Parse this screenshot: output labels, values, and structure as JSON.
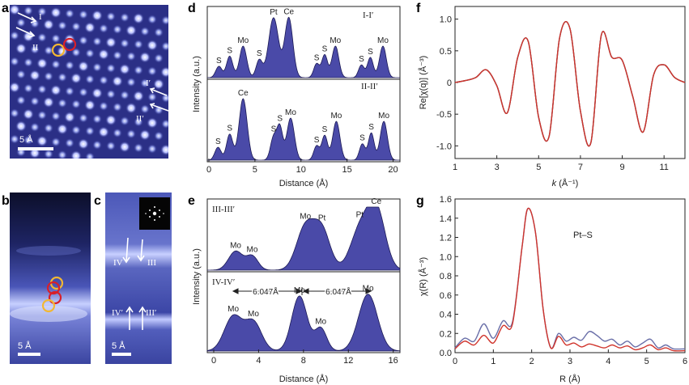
{
  "panels": {
    "a": {
      "label": "a",
      "scale_bar": "5 Å",
      "markers": [
        "I",
        "II",
        "I′",
        "II′"
      ]
    },
    "b": {
      "label": "b",
      "scale_bar": "5 Å"
    },
    "c": {
      "label": "c",
      "scale_bar": "5 Å",
      "markers": [
        "IV",
        "III",
        "IV′",
        "III′"
      ]
    },
    "d": {
      "label": "d",
      "ylabel": "Intensity (a.u.)",
      "xlabel": "Distance (Å)",
      "top_tag": "I-I′",
      "bottom_tag": "II-II′",
      "xticks": [
        "0",
        "5",
        "10",
        "15",
        "20"
      ]
    },
    "e": {
      "label": "e",
      "ylabel": "Intensity (a.u.)",
      "xlabel": "Distance (Å)",
      "top_tag": "III-III′",
      "bottom_tag": "IV-IV′",
      "spacing_1": "6.047Å",
      "spacing_2": "6.047Å",
      "xticks": [
        "0",
        "4",
        "8",
        "12",
        "16"
      ]
    },
    "f": {
      "label": "f",
      "ylabel": "Re[χ(q)] (Å⁻³)",
      "xlabel_k": "k",
      "xlabel_unit": "(Å⁻¹)",
      "xticks": [
        "1",
        "3",
        "5",
        "7",
        "9",
        "11"
      ],
      "yticks": [
        "1.0",
        "0.5",
        "0",
        "-0.5",
        "-1.0"
      ]
    },
    "g": {
      "label": "g",
      "ylabel": "χ(R) (Å⁻³)",
      "xlabel": "R (Å)",
      "annotation": "Pt–S",
      "xticks": [
        "0",
        "1",
        "2",
        "3",
        "4",
        "5",
        "6"
      ],
      "yticks": [
        "1.6",
        "1.4",
        "1.2",
        "1.0",
        "0.8",
        "0.6",
        "0.4",
        "0.2",
        "0.0"
      ]
    }
  },
  "chart_data": [
    {
      "id": "d-top",
      "type": "area",
      "title": "I-I′",
      "xlabel": "Distance (Å)",
      "ylabel": "Intensity (a.u.)",
      "xlim": [
        0,
        21.5
      ],
      "peaks": [
        {
          "x": 1.3,
          "h": 0.18,
          "w": 0.35,
          "label": "S"
        },
        {
          "x": 2.5,
          "h": 0.34,
          "w": 0.35,
          "label": "S"
        },
        {
          "x": 4.0,
          "h": 0.5,
          "w": 0.4,
          "label": "Mo"
        },
        {
          "x": 5.8,
          "h": 0.28,
          "w": 0.35,
          "label": "S"
        },
        {
          "x": 7.4,
          "h": 0.95,
          "w": 0.55,
          "label": "Pt"
        },
        {
          "x": 9.1,
          "h": 0.95,
          "w": 0.45,
          "label": "Ce"
        },
        {
          "x": 12.2,
          "h": 0.22,
          "w": 0.32,
          "label": "S"
        },
        {
          "x": 13.1,
          "h": 0.36,
          "w": 0.32,
          "label": "S"
        },
        {
          "x": 14.3,
          "h": 0.5,
          "w": 0.38,
          "label": "Mo"
        },
        {
          "x": 17.2,
          "h": 0.2,
          "w": 0.32,
          "label": "S"
        },
        {
          "x": 18.2,
          "h": 0.32,
          "w": 0.32,
          "label": "S"
        },
        {
          "x": 19.6,
          "h": 0.5,
          "w": 0.38,
          "label": "Mo"
        }
      ]
    },
    {
      "id": "d-bottom",
      "type": "area",
      "title": "II-II′",
      "xlabel": "Distance (Å)",
      "ylabel": "Intensity (a.u.)",
      "xlim": [
        0,
        21.5
      ],
      "peaks": [
        {
          "x": 1.2,
          "h": 0.2,
          "w": 0.35,
          "label": "S"
        },
        {
          "x": 2.5,
          "h": 0.4,
          "w": 0.35,
          "label": "S"
        },
        {
          "x": 4.0,
          "h": 0.95,
          "w": 0.45,
          "label": "Ce"
        },
        {
          "x": 7.4,
          "h": 0.35,
          "w": 0.35,
          "label": "S"
        },
        {
          "x": 8.1,
          "h": 0.5,
          "w": 0.32,
          "label": "S"
        },
        {
          "x": 9.3,
          "h": 0.65,
          "w": 0.42,
          "label": "Mo"
        },
        {
          "x": 12.2,
          "h": 0.22,
          "w": 0.32,
          "label": "S"
        },
        {
          "x": 13.1,
          "h": 0.38,
          "w": 0.32,
          "label": "S"
        },
        {
          "x": 14.4,
          "h": 0.6,
          "w": 0.4,
          "label": "Mo"
        },
        {
          "x": 17.3,
          "h": 0.25,
          "w": 0.32,
          "label": "S"
        },
        {
          "x": 18.3,
          "h": 0.42,
          "w": 0.32,
          "label": "S"
        },
        {
          "x": 19.7,
          "h": 0.6,
          "w": 0.4,
          "label": "Mo"
        }
      ]
    },
    {
      "id": "e-top",
      "type": "area",
      "title": "III-III′",
      "xlabel": "Distance (Å)",
      "ylabel": "Intensity (a.u.)",
      "xlim": [
        0,
        16.3
      ],
      "peaks": [
        {
          "x": 2.4,
          "h": 0.3,
          "w": 0.6,
          "label": "Mo"
        },
        {
          "x": 3.8,
          "h": 0.22,
          "w": 0.5,
          "label": "Mo"
        },
        {
          "x": 8.3,
          "h": 0.68,
          "w": 0.75,
          "label": "Mo"
        },
        {
          "x": 9.7,
          "h": 0.62,
          "w": 0.7,
          "label": "Pt"
        },
        {
          "x": 12.9,
          "h": 0.62,
          "w": 0.8,
          "label": "Pt"
        },
        {
          "x": 14.3,
          "h": 0.95,
          "w": 0.75,
          "label": "Ce"
        }
      ]
    },
    {
      "id": "e-bottom",
      "type": "area",
      "title": "IV-IV′",
      "xlabel": "Distance (Å)",
      "ylabel": "Intensity (a.u.)",
      "xlim": [
        0,
        16.3
      ],
      "peaks": [
        {
          "x": 2.2,
          "h": 0.58,
          "w": 0.75,
          "label": "Mo"
        },
        {
          "x": 3.9,
          "h": 0.48,
          "w": 0.7,
          "label": "Mo"
        },
        {
          "x": 7.8,
          "h": 0.92,
          "w": 0.65,
          "label": "Mo"
        },
        {
          "x": 9.6,
          "h": 0.38,
          "w": 0.5,
          "label": "Mo"
        },
        {
          "x": 13.6,
          "h": 0.95,
          "w": 0.8,
          "label": "Mo"
        }
      ]
    },
    {
      "id": "f",
      "type": "line",
      "xlabel": "k (Å⁻¹)",
      "ylabel": "Re[χ(q)] (Å⁻³)",
      "xlim": [
        1,
        12
      ],
      "ylim": [
        -1.2,
        1.2
      ],
      "series": [
        {
          "color": "#1a1a2e",
          "x": [
            1,
            1.5,
            2,
            2.5,
            3,
            3.5,
            4,
            4.5,
            5,
            5.5,
            6,
            6.5,
            7,
            7.5,
            8,
            8.5,
            9,
            9.5,
            10,
            10.5,
            11,
            11.5,
            12
          ],
          "y": [
            0,
            0.03,
            0.08,
            0.2,
            -0.05,
            -0.48,
            0.4,
            0.65,
            -0.55,
            -0.85,
            0.7,
            0.85,
            -0.45,
            -0.95,
            0.75,
            0.4,
            0.35,
            -0.22,
            -0.78,
            0.12,
            0.28,
            0.08,
            0
          ]
        },
        {
          "color": "#d0342c",
          "x": [
            1,
            1.5,
            2,
            2.5,
            3,
            3.5,
            4,
            4.5,
            5,
            5.5,
            6,
            6.5,
            7,
            7.5,
            8,
            8.5,
            9,
            9.5,
            10,
            10.5,
            11,
            11.5,
            12
          ],
          "y": [
            0,
            0.03,
            0.08,
            0.2,
            -0.05,
            -0.48,
            0.4,
            0.65,
            -0.55,
            -0.85,
            0.7,
            0.85,
            -0.45,
            -0.95,
            0.75,
            0.4,
            0.35,
            -0.22,
            -0.78,
            0.12,
            0.28,
            0.08,
            0
          ]
        }
      ]
    },
    {
      "id": "g",
      "type": "line",
      "xlabel": "R (Å)",
      "ylabel": "χ(R) (Å⁻³)",
      "xlim": [
        0,
        6
      ],
      "ylim": [
        0,
        1.6
      ],
      "series": [
        {
          "color": "#6a6fa8",
          "x": [
            0,
            0.25,
            0.5,
            0.75,
            1,
            1.25,
            1.5,
            1.75,
            1.9,
            2.1,
            2.3,
            2.5,
            2.7,
            2.9,
            3.1,
            3.3,
            3.5,
            3.7,
            3.9,
            4.1,
            4.3,
            4.5,
            4.7,
            4.9,
            5.1,
            5.3,
            5.5,
            5.7,
            6
          ],
          "y": [
            0.05,
            0.15,
            0.12,
            0.3,
            0.15,
            0.33,
            0.32,
            1.1,
            1.5,
            1.25,
            0.45,
            0.05,
            0.2,
            0.12,
            0.16,
            0.13,
            0.22,
            0.18,
            0.12,
            0.14,
            0.08,
            0.12,
            0.06,
            0.1,
            0.14,
            0.05,
            0.08,
            0.04,
            0.04
          ]
        },
        {
          "color": "#d0342c",
          "x": [
            0,
            0.25,
            0.5,
            0.75,
            1,
            1.25,
            1.5,
            1.75,
            1.9,
            2.1,
            2.3,
            2.5,
            2.7,
            2.9,
            3.1,
            3.3,
            3.5,
            3.7,
            3.9,
            4.1,
            4.3,
            4.5,
            4.7,
            4.9,
            5.1,
            5.3,
            5.5,
            5.7,
            6
          ],
          "y": [
            0.04,
            0.12,
            0.08,
            0.18,
            0.1,
            0.28,
            0.3,
            1.1,
            1.5,
            1.25,
            0.45,
            0.05,
            0.17,
            0.08,
            0.1,
            0.06,
            0.09,
            0.07,
            0.05,
            0.08,
            0.05,
            0.07,
            0.03,
            0.05,
            0.08,
            0.03,
            0.05,
            0.02,
            0.02
          ]
        }
      ]
    }
  ]
}
